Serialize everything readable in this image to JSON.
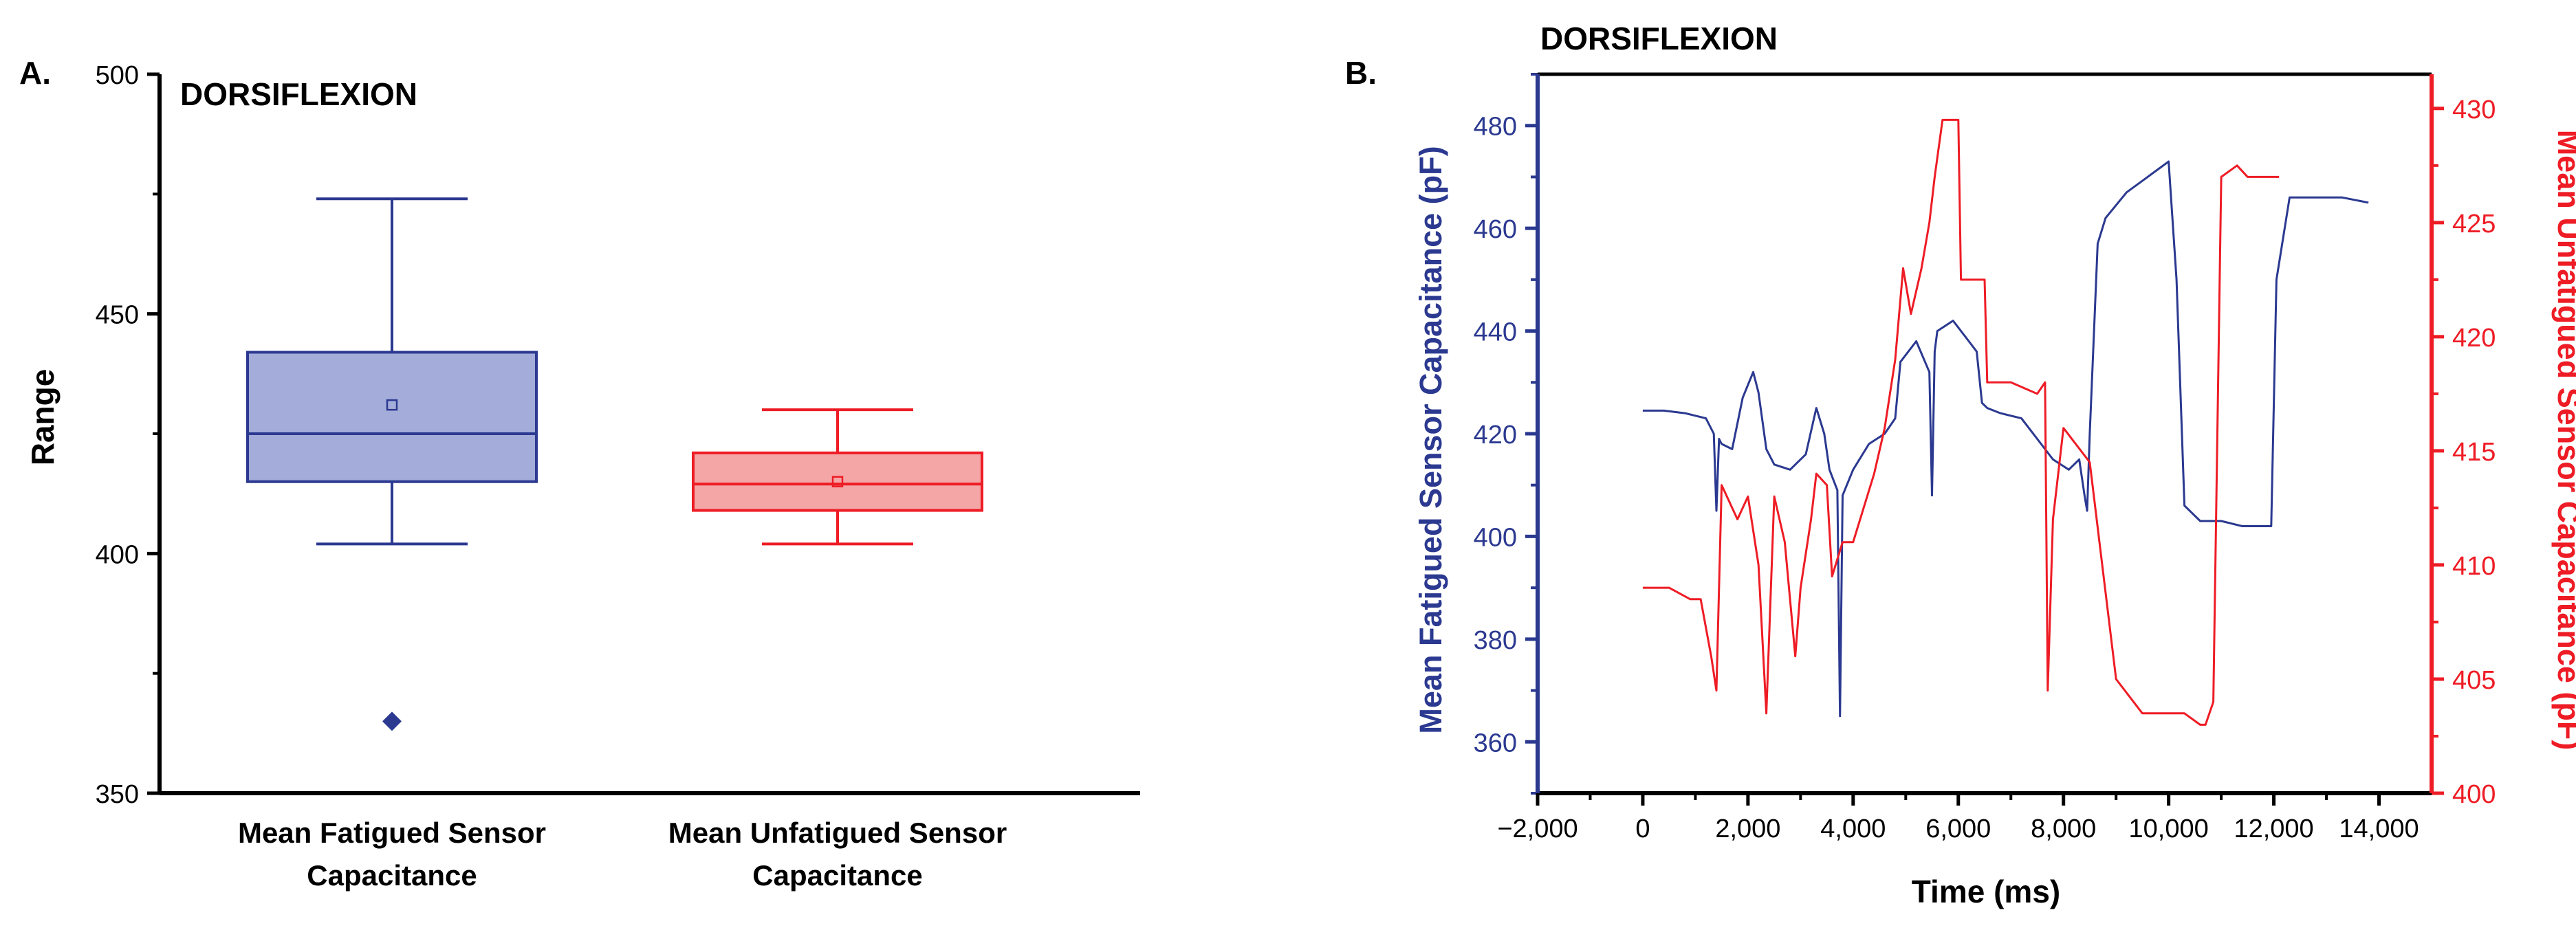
{
  "chart_data": [
    {
      "panel_label": "A.",
      "type": "box",
      "title": "DORSIFLEXION",
      "ylabel": "Range",
      "ylim": [
        350,
        500
      ],
      "yticks": [
        350,
        400,
        450,
        500
      ],
      "boxes": [
        {
          "label_lines": [
            "Mean Fatigued Sensor",
            "Capacitance"
          ],
          "color": "#2b3990",
          "fill": "#a4acd9",
          "whisker_low": 402,
          "q1": 415,
          "median": 425,
          "q3": 442,
          "whisker_high": 474,
          "mean": 431,
          "outliers": [
            365
          ]
        },
        {
          "label_lines": [
            "Mean Unfatigued Sensor",
            "Capacitance"
          ],
          "color": "#ee1c25",
          "fill": "#f4a6a6",
          "whisker_low": 402,
          "q1": 409,
          "median": 414.5,
          "q3": 421,
          "whisker_high": 430,
          "mean": 415,
          "outliers": []
        }
      ]
    },
    {
      "panel_label": "B.",
      "type": "line",
      "title": "DORSIFLEXION",
      "xlabel": "Time (ms)",
      "xlim": [
        -2000,
        15000
      ],
      "xticks": [
        -2000,
        0,
        2000,
        4000,
        6000,
        8000,
        10000,
        12000,
        14000
      ],
      "xtick_labels": [
        "−2,000",
        "0",
        "2,000",
        "4,000",
        "6,000",
        "8,000",
        "10,000",
        "12,000",
        "14,000"
      ],
      "left_axis": {
        "label": "Mean Fatigued Sensor Capacitance (pF)",
        "ylim": [
          350,
          490
        ],
        "yticks": [
          360,
          380,
          400,
          420,
          440,
          460,
          480
        ],
        "color": "#2b3990"
      },
      "right_axis": {
        "label": "Mean Unfatigued Sensor Capacitance (pF)",
        "ylim": [
          400,
          431.5
        ],
        "yticks": [
          400,
          405,
          410,
          415,
          420,
          425,
          430
        ],
        "color": "#ee1c25"
      },
      "series": [
        {
          "name": "Mean Fatigued Sensor Capacitance",
          "axis": "left",
          "color": "#2b3990",
          "x": [
            0,
            400,
            800,
            1200,
            1350,
            1400,
            1450,
            1500,
            1700,
            1900,
            2100,
            2200,
            2350,
            2500,
            2800,
            3100,
            3300,
            3450,
            3550,
            3700,
            3750,
            3800,
            4000,
            4300,
            4600,
            4800,
            4900,
            5200,
            5450,
            5500,
            5550,
            5600,
            5900,
            6200,
            6350,
            6450,
            6550,
            6800,
            7200,
            7500,
            7800,
            8100,
            8300,
            8400,
            8450,
            8500,
            8650,
            8800,
            9200,
            9600,
            10000,
            10150,
            10300,
            10600,
            11000,
            11400,
            11700,
            11950,
            12050,
            12300,
            12800,
            13300,
            13800
          ],
          "y": [
            424.5,
            424.5,
            424,
            423,
            420,
            405,
            419,
            418,
            417,
            427,
            432,
            428,
            417,
            414,
            413,
            416,
            425,
            420,
            413,
            409,
            365,
            408,
            413,
            418,
            420,
            423,
            434,
            438,
            432,
            408,
            436,
            440,
            442,
            438,
            436,
            426,
            425,
            424,
            423,
            419,
            415,
            413,
            415,
            408,
            405,
            420,
            457,
            462,
            467,
            470,
            473,
            450,
            406,
            403,
            403,
            402,
            402,
            402,
            450,
            466,
            466,
            466,
            465
          ]
        },
        {
          "name": "Mean Unfatigued Sensor Capacitance",
          "axis": "right",
          "color": "#ee1c25",
          "x": [
            0,
            500,
            900,
            1100,
            1300,
            1400,
            1500,
            1800,
            2000,
            2200,
            2350,
            2500,
            2700,
            2900,
            3000,
            3200,
            3300,
            3500,
            3600,
            3800,
            4000,
            4400,
            4600,
            4800,
            4950,
            5100,
            5300,
            5450,
            5550,
            5700,
            6000,
            6050,
            6400,
            6500,
            6550,
            6600,
            7000,
            7500,
            7650,
            7700,
            7800,
            8000,
            8500,
            9000,
            9500,
            9800,
            10300,
            10600,
            10700,
            10850,
            11000,
            11300,
            11500,
            12100
          ],
          "y": [
            409,
            409,
            408.5,
            408.5,
            406,
            404.5,
            413.5,
            412,
            413,
            410,
            403.5,
            413,
            411,
            406,
            409,
            412,
            414,
            413.5,
            409.5,
            411,
            411,
            414,
            416,
            419,
            423,
            421,
            423,
            425,
            427,
            429.5,
            429.5,
            422.5,
            422.5,
            422.5,
            418,
            418,
            418,
            417.5,
            418,
            404.5,
            412,
            416,
            414.5,
            405,
            403.5,
            403.5,
            403.5,
            403,
            403,
            404,
            427,
            427.5,
            427,
            427
          ]
        }
      ]
    }
  ]
}
